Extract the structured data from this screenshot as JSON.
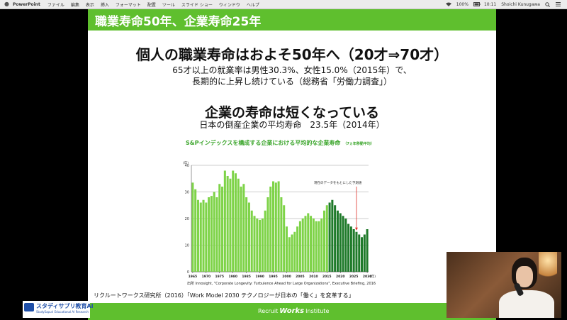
{
  "menubar": {
    "app": "PowerPoint",
    "items": [
      "ファイル",
      "編集",
      "表示",
      "挿入",
      "フォーマット",
      "配置",
      "ツール",
      "スライド ショー",
      "ウィンドウ",
      "ヘルプ"
    ],
    "battery": "100%",
    "clock": "10:11",
    "user": "Shoichi Kunugawa"
  },
  "slide": {
    "title": "職業寿命50年、企業寿命25年",
    "heading1": "個人の職業寿命はおよそ50年へ（20才⇒70才）",
    "sub1a": "65才以上の就業率は男性30.3%、女性15.0%（2015年）で、",
    "sub1b": "長期的に上昇し続けている（総務省「労働力調査」）",
    "heading2": "企業の寿命は短くなっている",
    "sub2": "日本の倒産企業の平均寿命　23.5年（2014年）",
    "chart_title": "S&Pインデックスを構成する企業における平均的な企業寿命",
    "chart_title_note": "（7ヵ年移動平均）",
    "citation": "出所 Innosight, \"Corporate Longevity: Turbulence Ahead for Large Organizations\", Executive Briefing, 2016",
    "source": "リクルートワークス研究所（2016）「Work Model 2030 テクノロジーが日本の「働く」を変革する」",
    "footer_brand_pre": "Recruit",
    "footer_brand_mid": "Works",
    "footer_brand_post": "Institute"
  },
  "logo": {
    "name": "スタディサプリ教育AI",
    "sub": "StudySapuri Educational AI Research"
  },
  "colors": {
    "accent_green": "#5fbf2e",
    "bar_light": "#7ed348",
    "bar_dark": "#1f7a2a",
    "logo_blue": "#1f4fa8"
  },
  "chart_data": {
    "type": "bar",
    "ylabel": "(年)",
    "xlabel_unit": "(年)",
    "ylim": [
      0,
      40
    ],
    "yticks": [
      0,
      10,
      20,
      30,
      40
    ],
    "xticks": [
      1965,
      1970,
      1975,
      1980,
      1985,
      1990,
      1995,
      2000,
      2005,
      2010,
      2015,
      2020,
      2025,
      2030
    ],
    "annotation": "現在のデータをもとにした予測値",
    "annotation_year": 2026,
    "forecast_start": 2016,
    "grid": true,
    "years": [
      1965,
      1966,
      1967,
      1968,
      1969,
      1970,
      1971,
      1972,
      1973,
      1974,
      1975,
      1976,
      1977,
      1978,
      1979,
      1980,
      1981,
      1982,
      1983,
      1984,
      1985,
      1986,
      1987,
      1988,
      1989,
      1990,
      1991,
      1992,
      1993,
      1994,
      1995,
      1996,
      1997,
      1998,
      1999,
      2000,
      2001,
      2002,
      2003,
      2004,
      2005,
      2006,
      2007,
      2008,
      2009,
      2010,
      2011,
      2012,
      2013,
      2014,
      2015,
      2016,
      2017,
      2018,
      2019,
      2020,
      2021,
      2022,
      2023,
      2024,
      2025,
      2026,
      2027,
      2028,
      2029,
      2030
    ],
    "values": [
      33.5,
      31,
      27,
      26,
      27,
      26,
      28,
      28.5,
      30,
      28,
      33,
      32,
      38,
      36,
      35,
      38,
      37,
      35,
      32,
      33,
      28,
      26,
      23,
      21,
      20,
      19.5,
      20,
      23,
      28,
      32,
      34,
      33.5,
      34,
      28,
      25,
      17,
      13,
      14,
      15,
      17,
      19,
      20,
      21,
      22,
      21,
      20,
      19,
      19,
      20,
      23,
      25,
      26,
      27,
      25,
      23,
      22,
      21,
      20,
      18,
      17,
      16,
      15,
      14,
      13,
      14,
      16
    ]
  }
}
